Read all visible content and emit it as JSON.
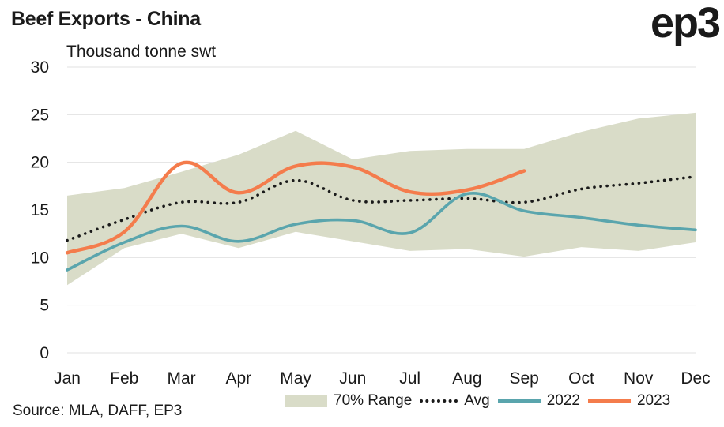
{
  "header": {
    "title": "Beef Exports - China",
    "logo_text": "ep3"
  },
  "source": "Source: MLA, DAFF, EP3",
  "chart_data": {
    "type": "line",
    "title": "Beef Exports - China",
    "ylabel": "Thousand tonne swt",
    "xlabel": "",
    "categories": [
      "Jan",
      "Feb",
      "Mar",
      "Apr",
      "May",
      "Jun",
      "Jul",
      "Aug",
      "Sep",
      "Oct",
      "Nov",
      "Dec"
    ],
    "yticks": [
      0,
      5,
      10,
      15,
      20,
      25,
      30
    ],
    "ylim": [
      0,
      30
    ],
    "grid": true,
    "legend_position": "bottom",
    "range": {
      "name": "70% Range",
      "color": "#d9dcc8",
      "upper": [
        16.5,
        17.3,
        19.0,
        20.8,
        23.3,
        20.3,
        21.2,
        21.4,
        21.4,
        23.2,
        24.6,
        25.2
      ],
      "lower": [
        7.1,
        11.0,
        12.5,
        11.0,
        12.7,
        11.7,
        10.7,
        10.9,
        10.1,
        11.1,
        10.7,
        11.6
      ]
    },
    "series": [
      {
        "name": "Avg",
        "style": "dotted",
        "color": "#1a1a1a",
        "values": [
          11.8,
          14.0,
          15.8,
          15.8,
          18.1,
          16.0,
          16.0,
          16.2,
          15.8,
          17.2,
          17.8,
          18.5
        ]
      },
      {
        "name": "2022",
        "style": "solid",
        "color": "#5aa5ad",
        "values": [
          8.7,
          11.6,
          13.3,
          11.7,
          13.5,
          13.9,
          12.6,
          16.7,
          14.9,
          14.2,
          13.4,
          12.9
        ]
      },
      {
        "name": "2023",
        "style": "solid",
        "color": "#f47c4c",
        "values": [
          10.5,
          12.7,
          19.9,
          16.8,
          19.6,
          19.5,
          16.9,
          17.1,
          19.1,
          null,
          null,
          null
        ]
      }
    ]
  }
}
